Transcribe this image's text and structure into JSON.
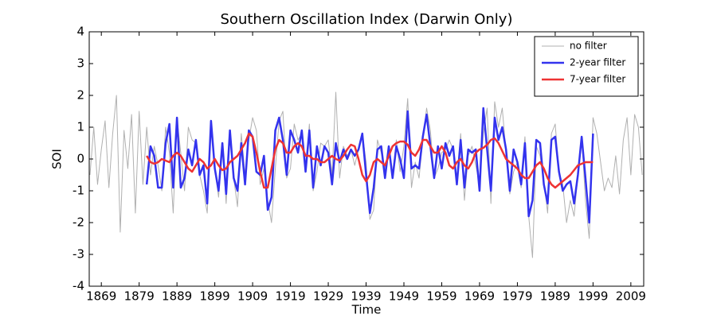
{
  "chart_data": {
    "type": "line",
    "title": "Southern Oscillation Index (Darwin Only)",
    "x_label": "Time",
    "y_label": "SOI",
    "x": [
      1866,
      1867,
      1868,
      1869,
      1870,
      1871,
      1872,
      1873,
      1874,
      1875,
      1876,
      1877,
      1878,
      1879,
      1880,
      1881,
      1882,
      1883,
      1884,
      1885,
      1886,
      1887,
      1888,
      1889,
      1890,
      1891,
      1892,
      1893,
      1894,
      1895,
      1896,
      1897,
      1898,
      1899,
      1900,
      1901,
      1902,
      1903,
      1904,
      1905,
      1906,
      1907,
      1908,
      1909,
      1910,
      1911,
      1912,
      1913,
      1914,
      1915,
      1916,
      1917,
      1918,
      1919,
      1920,
      1921,
      1922,
      1923,
      1924,
      1925,
      1926,
      1927,
      1928,
      1929,
      1930,
      1931,
      1932,
      1933,
      1934,
      1935,
      1936,
      1937,
      1938,
      1939,
      1940,
      1941,
      1942,
      1943,
      1944,
      1945,
      1946,
      1947,
      1948,
      1949,
      1950,
      1951,
      1952,
      1953,
      1954,
      1955,
      1956,
      1957,
      1958,
      1959,
      1960,
      1961,
      1962,
      1963,
      1964,
      1965,
      1966,
      1967,
      1968,
      1969,
      1970,
      1971,
      1972,
      1973,
      1974,
      1975,
      1976,
      1977,
      1978,
      1979,
      1980,
      1981,
      1982,
      1983,
      1984,
      1985,
      1986,
      1987,
      1988,
      1989,
      1990,
      1991,
      1992,
      1993,
      1994,
      1995,
      1996,
      1997,
      1998,
      1999,
      2000,
      2001,
      2002,
      2003,
      2004,
      2005,
      2006,
      2007,
      2008,
      2009,
      2010,
      2011,
      2012
    ],
    "series": [
      {
        "name": "no filter",
        "color": "#b0b0b0",
        "values": [
          -0.5,
          1.0,
          -0.8,
          0.3,
          1.2,
          -0.9,
          0.8,
          2.0,
          -2.3,
          0.9,
          -0.3,
          1.4,
          -1.7,
          1.5,
          -0.8,
          1.0,
          -0.5,
          0.4,
          -0.2,
          -1.0,
          1.0,
          0.2,
          -1.7,
          1.3,
          0.2,
          -1.0,
          1.0,
          0.6,
          0.5,
          -0.5,
          -1.0,
          -1.7,
          1.2,
          -0.3,
          -1.2,
          0.4,
          -1.4,
          0.9,
          -0.6,
          -1.5,
          0.8,
          -0.5,
          0.6,
          1.3,
          0.9,
          -0.8,
          -0.3,
          -1.3,
          -2.0,
          -0.3,
          1.2,
          1.5,
          -0.6,
          -0.3,
          1.1,
          0.6,
          0.8,
          -0.4,
          1.1,
          -1.0,
          -0.4,
          0.5,
          0.4,
          0.6,
          -0.5,
          2.1,
          -0.6,
          0.4,
          0.1,
          0.3,
          -0.2,
          0.3,
          0.8,
          -0.1,
          -1.9,
          -1.6,
          0.6,
          0.2,
          -0.3,
          0.3,
          -0.5,
          0.6,
          -0.4,
          0.4,
          1.9,
          -0.9,
          -0.1,
          -0.6,
          0.6,
          1.6,
          0.9,
          -0.6,
          -0.3,
          0.2,
          0.3,
          0.6,
          0.3,
          -0.8,
          0.8,
          -1.3,
          0.1,
          0.4,
          -0.2,
          -0.8,
          0.8,
          1.6,
          -1.4,
          1.8,
          1.0,
          1.6,
          0.2,
          -1.1,
          -0.4,
          -0.1,
          -0.9,
          0.7,
          -1.8,
          -3.1,
          0.4,
          0.1,
          -0.7,
          -1.7,
          0.8,
          1.1,
          -0.4,
          -0.8,
          -2.0,
          -1.3,
          -1.8,
          -0.5,
          0.7,
          -1.3,
          -2.5,
          1.3,
          0.8,
          -0.1,
          -1.0,
          -0.6,
          -0.9,
          0.1,
          -1.1,
          0.6,
          1.3,
          -0.5,
          1.4,
          1.0,
          -0.5
        ]
      },
      {
        "name": "2-year filter",
        "color": "#3333ee",
        "values": [
          null,
          null,
          null,
          null,
          null,
          null,
          null,
          null,
          null,
          null,
          null,
          null,
          null,
          null,
          null,
          -0.8,
          0.4,
          0.1,
          -0.9,
          -0.9,
          0.5,
          1.1,
          -0.9,
          1.3,
          -0.9,
          -0.6,
          0.3,
          -0.2,
          0.6,
          -0.5,
          -0.2,
          -1.4,
          1.2,
          -0.3,
          -1.0,
          0.5,
          -1.1,
          0.9,
          -0.6,
          -1.0,
          0.5,
          -0.8,
          0.9,
          0.7,
          -0.4,
          -0.5,
          0.1,
          -1.6,
          -1.2,
          0.9,
          1.3,
          0.6,
          -0.5,
          0.9,
          0.6,
          0.2,
          0.9,
          -0.4,
          0.9,
          -0.9,
          0.4,
          -0.2,
          0.4,
          0.2,
          -0.8,
          0.5,
          -0.1,
          0.3,
          0.0,
          0.3,
          0.1,
          0.3,
          0.8,
          -0.5,
          -1.7,
          -0.9,
          0.3,
          0.4,
          -0.6,
          0.4,
          -0.6,
          0.4,
          0.0,
          -0.6,
          1.5,
          -0.3,
          -0.2,
          -0.3,
          0.7,
          1.4,
          0.4,
          -0.6,
          0.4,
          -0.3,
          0.5,
          0.1,
          0.4,
          -0.8,
          0.6,
          -0.9,
          0.3,
          0.2,
          0.3,
          -1.0,
          1.6,
          0.3,
          -1.0,
          1.3,
          0.6,
          1.0,
          0.3,
          -1.0,
          0.3,
          -0.1,
          -0.8,
          0.5,
          -1.8,
          -1.3,
          0.6,
          0.5,
          -0.8,
          -1.4,
          0.6,
          0.7,
          -0.4,
          -1.0,
          -0.8,
          -0.7,
          -1.4,
          -0.5,
          0.7,
          -0.6,
          -2.0,
          0.8,
          null,
          null,
          null,
          null,
          null,
          null,
          null,
          null,
          null,
          null,
          null,
          null,
          null
        ]
      },
      {
        "name": "7-year filter",
        "color": "#ee3333",
        "values": [
          null,
          null,
          null,
          null,
          null,
          null,
          null,
          null,
          null,
          null,
          null,
          null,
          null,
          null,
          null,
          0.1,
          -0.1,
          -0.15,
          -0.1,
          0.0,
          -0.05,
          -0.1,
          0.1,
          0.2,
          0.1,
          -0.1,
          -0.3,
          -0.4,
          -0.2,
          0.0,
          -0.1,
          -0.3,
          -0.2,
          0.0,
          -0.2,
          -0.35,
          -0.3,
          -0.1,
          0.0,
          0.1,
          0.3,
          0.5,
          0.8,
          0.7,
          0.2,
          -0.4,
          -0.9,
          -0.9,
          -0.3,
          0.3,
          0.6,
          0.5,
          0.2,
          0.2,
          0.4,
          0.5,
          0.4,
          0.1,
          0.1,
          0.0,
          0.0,
          -0.1,
          -0.1,
          0.0,
          0.1,
          0.0,
          -0.05,
          0.1,
          0.3,
          0.45,
          0.4,
          0.0,
          -0.5,
          -0.7,
          -0.5,
          -0.1,
          0.0,
          -0.1,
          -0.2,
          0.1,
          0.4,
          0.5,
          0.55,
          0.55,
          0.45,
          0.2,
          0.1,
          0.3,
          0.6,
          0.6,
          0.4,
          0.2,
          0.2,
          0.4,
          0.2,
          -0.2,
          -0.3,
          -0.1,
          0.0,
          -0.2,
          -0.3,
          -0.1,
          0.2,
          0.3,
          0.35,
          0.45,
          0.6,
          0.65,
          0.5,
          0.25,
          0.0,
          -0.1,
          -0.2,
          -0.3,
          -0.5,
          -0.6,
          -0.6,
          -0.4,
          -0.2,
          -0.1,
          -0.3,
          -0.6,
          -0.8,
          -0.9,
          -0.8,
          -0.7,
          -0.6,
          -0.5,
          -0.35,
          -0.2,
          -0.15,
          -0.1,
          -0.1,
          -0.1,
          null,
          null,
          null,
          null,
          null,
          null,
          null,
          null,
          null,
          null,
          null,
          null,
          null
        ]
      }
    ],
    "xlim": [
      1865.8,
      2012.4
    ],
    "xticks": [
      1869,
      1879,
      1889,
      1899,
      1909,
      1919,
      1929,
      1939,
      1949,
      1959,
      1969,
      1979,
      1989,
      1999,
      2009
    ],
    "ylim": [
      -4,
      4
    ],
    "yticks": [
      -4,
      -3,
      -2,
      -1,
      0,
      1,
      2,
      3,
      4
    ],
    "grid": false,
    "legend": "upper right"
  }
}
